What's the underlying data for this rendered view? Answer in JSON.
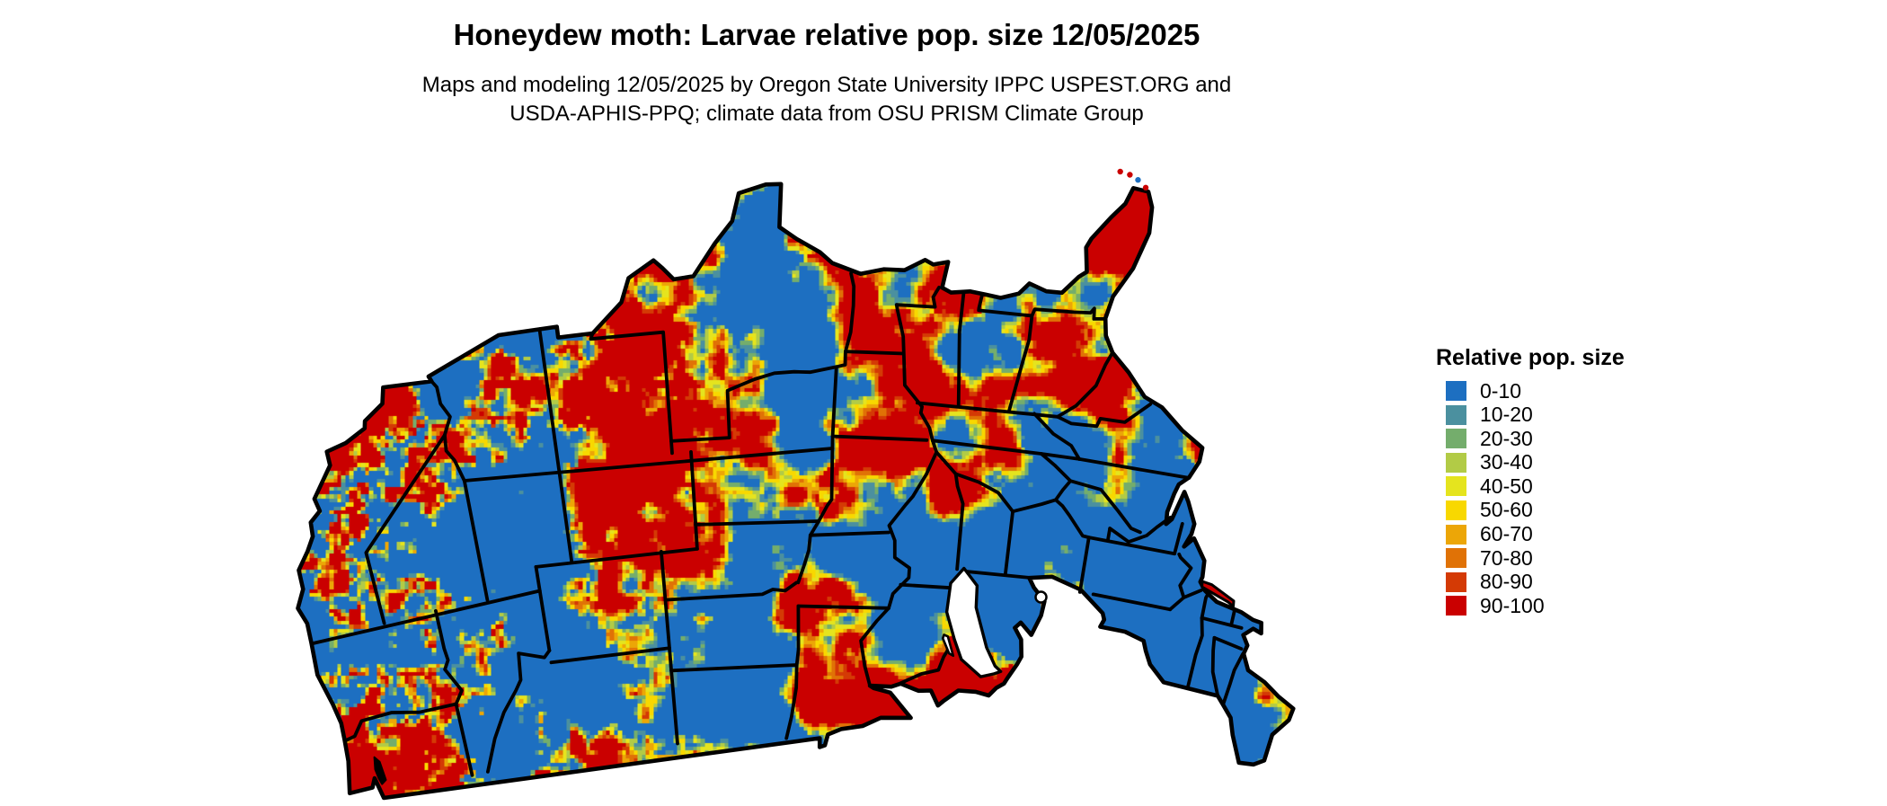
{
  "header": {
    "title": "Honeydew moth: Larvae relative pop. size 12/05/2025",
    "subtitle_line1": "Maps and modeling 12/05/2025 by Oregon State University IPPC USPEST.ORG and",
    "subtitle_line2": "USDA-APHIS-PPQ; climate data from OSU PRISM Climate Group"
  },
  "legend": {
    "title": "Relative pop. size",
    "items": [
      {
        "label": "0-10",
        "color": "#1D6FC1"
      },
      {
        "label": "10-20",
        "color": "#4B909F"
      },
      {
        "label": "20-30",
        "color": "#74AD6C"
      },
      {
        "label": "30-40",
        "color": "#B2CB46"
      },
      {
        "label": "40-50",
        "color": "#E5E41E"
      },
      {
        "label": "50-60",
        "color": "#F8D800"
      },
      {
        "label": "60-70",
        "color": "#ECA607"
      },
      {
        "label": "70-80",
        "color": "#E07206"
      },
      {
        "label": "80-90",
        "color": "#D43A05"
      },
      {
        "label": "90-100",
        "color": "#CA0000"
      }
    ]
  },
  "map": {
    "border_color": "#000000",
    "water_color": "#ffffff"
  }
}
